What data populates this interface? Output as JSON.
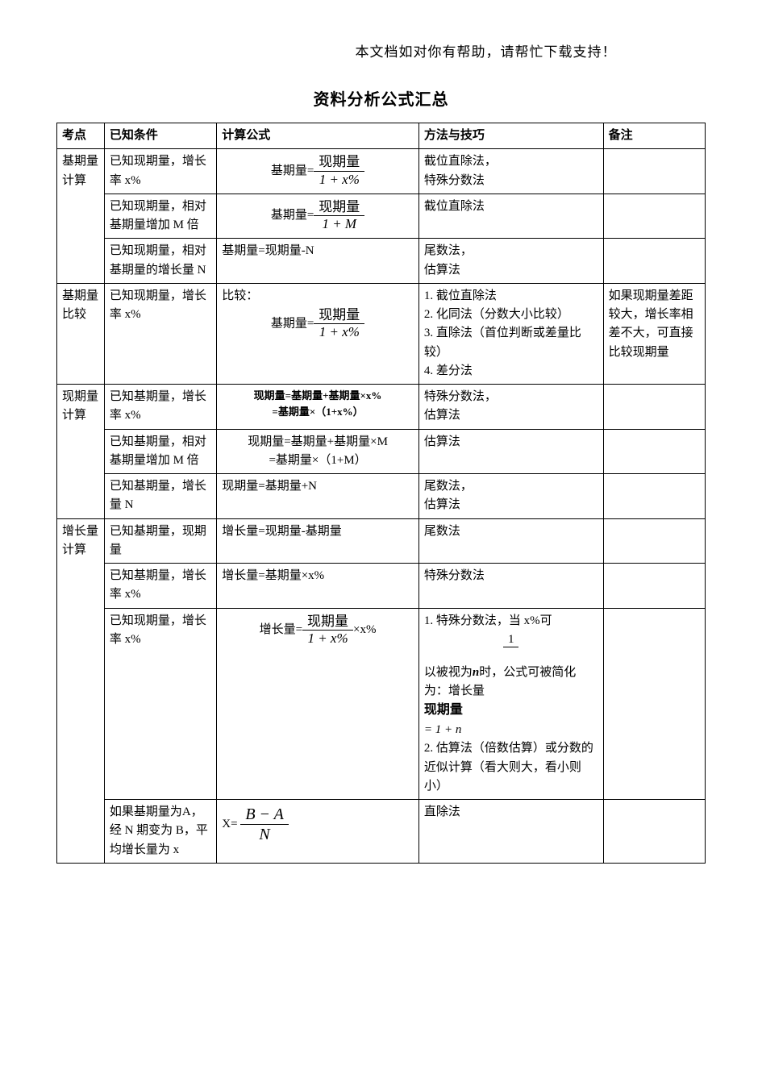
{
  "header_note": "本文档如对你有帮助，请帮忙下载支持！",
  "title": "资料分析公式汇总",
  "columns": {
    "c1": "考点",
    "c2": "已知条件",
    "c3": "计算公式",
    "c4": "方法与技巧",
    "c5": "备注"
  },
  "rows": {
    "r1": {
      "topic": "基期量计算",
      "cond": "已知现期量，增长率 x%",
      "formula_prefix": "基期量=",
      "frac_num": "现期量",
      "frac_den": "1 + x%",
      "method": "截位直除法，\n特殊分数法",
      "note": ""
    },
    "r2": {
      "cond": "已知现期量，相对基期量增加 M 倍",
      "formula_prefix": "基期量=",
      "frac_num": "现期量",
      "frac_den": "1 + M",
      "method": "截位直除法",
      "note": ""
    },
    "r3": {
      "cond": "已知现期量，相对基期量的增长量 N",
      "formula_text": "基期量=现期量-N",
      "method": "尾数法，\n估算法",
      "note": ""
    },
    "r4": {
      "topic": "基期量比较",
      "cond": "已知现期量，增长率 x%",
      "formula_label": "比较：",
      "formula_prefix": "基期量=",
      "frac_num": "现期量",
      "frac_den": "1 + x%",
      "method": "1. 截位直除法\n2. 化同法（分数大小比较）\n3. 直除法（首位判断或差量比较）\n4. 差分法",
      "note": "如果现期量差距较大，增长率相差不大，可直接比较现期量"
    },
    "r5": {
      "topic": "现期量计算",
      "cond": "已知基期量，增长率 x%",
      "formula_line1": "现期量=基期量+基期量×x%",
      "formula_line2": "=基期量×（1+x%）",
      "method": "特殊分数法，\n估算法",
      "note": ""
    },
    "r6": {
      "cond": "已知基期量，相对基期量增加 M 倍",
      "formula_line1": "现期量=基期量+基期量×M",
      "formula_line2": "=基期量×（1+M）",
      "method": "估算法",
      "note": ""
    },
    "r7": {
      "cond": "已知基期量，增长量 N",
      "formula_text": "现期量=基期量+N",
      "method": "尾数法，\n估算法",
      "note": ""
    },
    "r8": {
      "topic": "增长量计算",
      "cond": "已知基期量，现期量",
      "formula_text": "增长量=现期量-基期量",
      "method": "尾数法",
      "note": ""
    },
    "r9": {
      "cond": "已知基期量，增长率 x%",
      "formula_text": "增长量=基期量×x%",
      "method": "特殊分数法",
      "note": ""
    },
    "r10": {
      "cond": "已知现期量，增长率 x%",
      "formula_prefix": "增长量=",
      "frac_num": "现期量",
      "frac_den": "1 + x%",
      "formula_suffix": "×x%",
      "method_p1": "1. 特殊分数法，当 x%可",
      "method_frac_num": "1",
      "method_frac_den_prefix": "以被视为",
      "method_frac_n": "n",
      "method_p2": "时，公式可被简化为：增长量",
      "method_frac2_num": "现期量",
      "method_eq": "= 1 + n",
      "method_p3": "2. 估算法（倍数估算）或分数的近似计算（看大则大，看小则小）",
      "note": ""
    },
    "r11": {
      "cond": "如果基期量为A，经 N 期变为 B，平均增长量为 x",
      "formula_prefix": "X=",
      "frac_num": "B − A",
      "frac_den": "N",
      "method": "直除法",
      "note": ""
    }
  },
  "style": {
    "page_bg": "#ffffff",
    "text_color": "#000000",
    "border_color": "#000000",
    "title_fontsize": 20,
    "body_fontsize": 15,
    "header_fontsize": 17,
    "font_family": "SimSun"
  }
}
